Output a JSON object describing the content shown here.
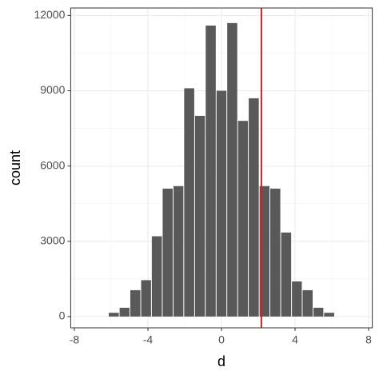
{
  "chart_data": {
    "type": "histogram",
    "x_label": "d",
    "y_label": "count",
    "bins": [
      -6.15,
      -5.56,
      -4.98,
      -4.39,
      -3.81,
      -3.22,
      -2.63,
      -2.05,
      -1.46,
      -0.88,
      -0.29,
      0.29,
      0.88,
      1.46,
      2.05,
      2.63,
      3.22,
      3.81,
      4.39,
      4.98,
      5.56,
      6.15
    ],
    "values": [
      150,
      350,
      1050,
      1450,
      3200,
      5100,
      5200,
      9100,
      8000,
      11600,
      9000,
      11700,
      7800,
      8700,
      5200,
      5100,
      3350,
      1400,
      1050,
      350,
      150
    ],
    "color": "#595959",
    "vline": 2.17,
    "vline_color": "#e41a1c",
    "xlim": [
      -8.2,
      8.2
    ],
    "xticks": [
      -8,
      -4,
      0,
      4,
      8
    ],
    "ylim": [
      -450,
      12300
    ],
    "yticks": [
      0,
      3000,
      6000,
      9000,
      12000
    ],
    "grid": true
  }
}
